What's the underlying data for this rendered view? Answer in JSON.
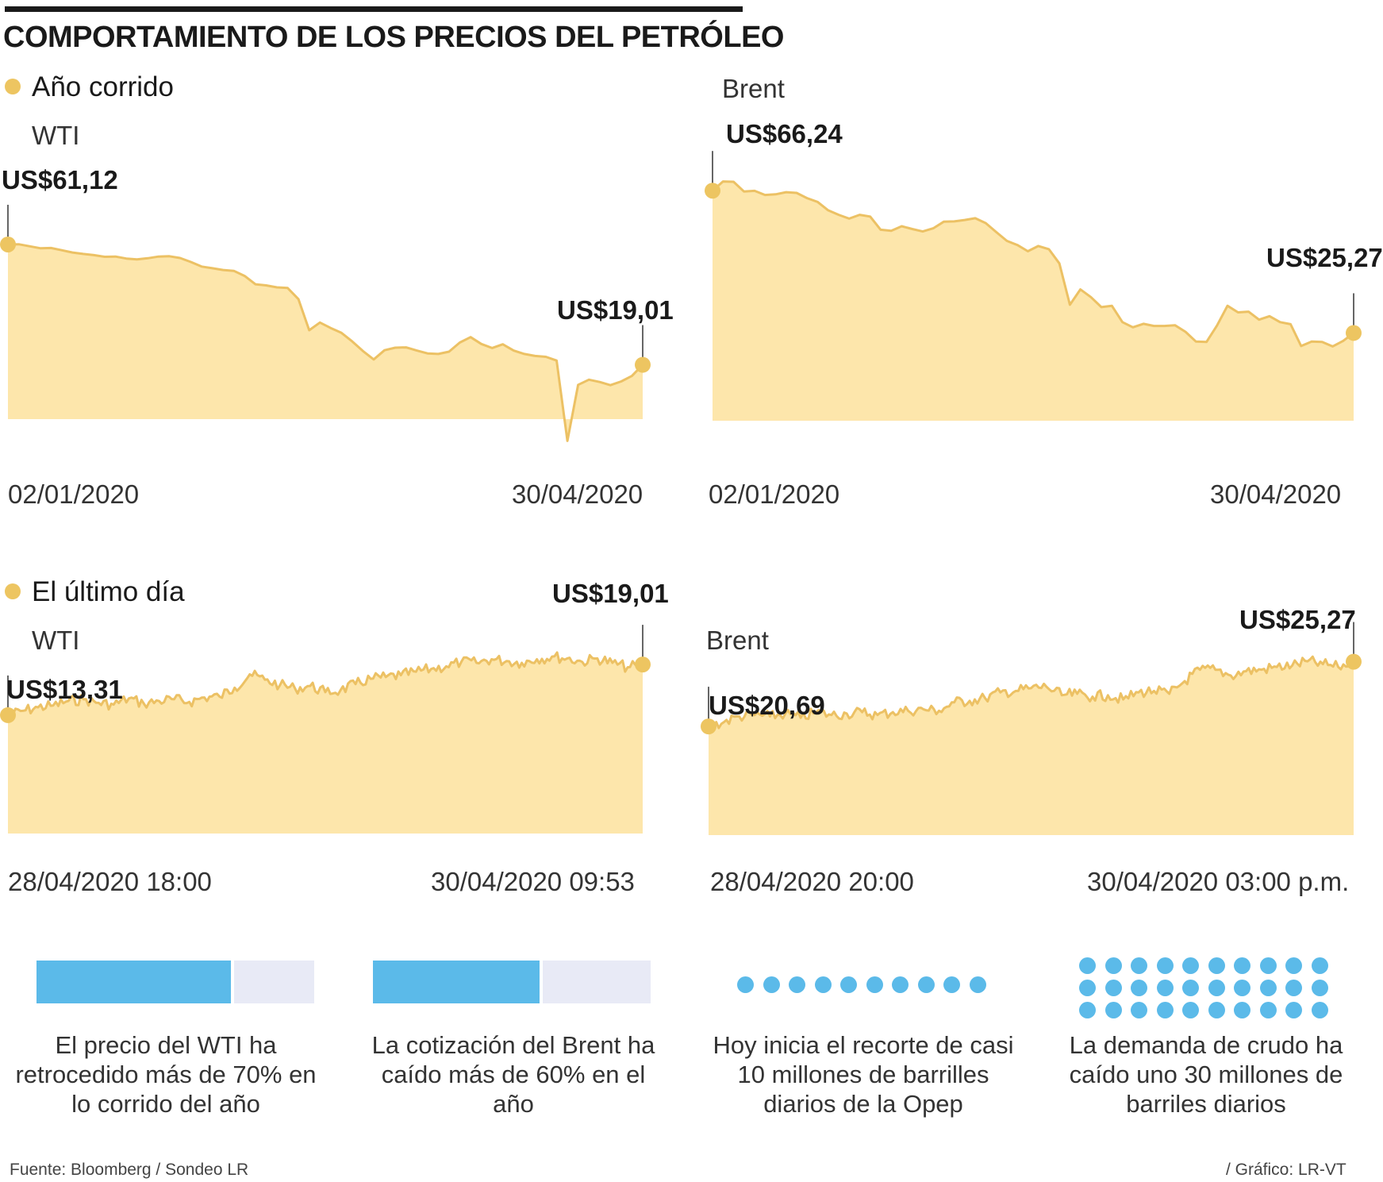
{
  "title": "COMPORTAMIENTO DE LOS PRECIOS DEL PETRÓLEO",
  "colors": {
    "area": "#fde6ab",
    "line": "#ecc164",
    "dot": "#edc561",
    "accent": "#5bbae9",
    "bar_bg": "#e8eaf6",
    "text": "#1a1a1a"
  },
  "sections": {
    "ytd": "Año corrido",
    "day": "El último día"
  },
  "chart_data": [
    {
      "type": "area",
      "title": "WTI",
      "period": "Año corrido",
      "x_start": "02/01/2020",
      "x_end": "30/04/2020",
      "start_label": "US$61,12",
      "end_label": "US$19,01",
      "start": 61.12,
      "end": 19.01,
      "ylim": [
        0,
        80
      ],
      "values": [
        61.12,
        61.2,
        60.5,
        59.8,
        59.9,
        59.1,
        58.3,
        57.8,
        57.4,
        56.8,
        56.9,
        56.2,
        55.9,
        56.3,
        56.9,
        57.0,
        56.4,
        55.0,
        53.4,
        52.8,
        52.2,
        51.9,
        50.1,
        47.2,
        46.8,
        46.1,
        45.9,
        42.0,
        31.1,
        33.8,
        31.9,
        30.2,
        27.2,
        23.8,
        20.9,
        24.1,
        25.0,
        25.1,
        24.0,
        23.0,
        22.8,
        23.6,
        26.8,
        28.7,
        26.3,
        24.9,
        26.2,
        24.0,
        22.8,
        22.1,
        21.8,
        20.5,
        -7.6,
        12.0,
        13.8,
        13.0,
        11.9,
        13.2,
        15.1,
        19.01
      ]
    },
    {
      "type": "area",
      "title": "Brent",
      "period": "Año corrido",
      "x_start": "02/01/2020",
      "x_end": "30/04/2020",
      "start_label": "US$66,24",
      "end_label": "US$25,27",
      "start": 66.24,
      "end": 25.27,
      "ylim": [
        0,
        80
      ],
      "values": [
        66.24,
        68.9,
        68.8,
        66.0,
        66.2,
        65.0,
        65.2,
        65.8,
        65.6,
        64.1,
        63.0,
        60.6,
        59.3,
        58.2,
        59.3,
        58.8,
        55.0,
        54.7,
        56.0,
        55.2,
        54.5,
        55.4,
        57.3,
        57.4,
        57.8,
        58.3,
        56.9,
        54.3,
        51.8,
        50.6,
        48.8,
        50.3,
        49.4,
        45.3,
        33.4,
        37.8,
        35.6,
        32.7,
        33.1,
        28.4,
        26.9,
        27.9,
        27.3,
        27.3,
        27.5,
        25.6,
        22.8,
        22.7,
        27.4,
        33.1,
        31.2,
        31.4,
        29.1,
        30.1,
        28.4,
        27.8,
        21.5,
        22.8,
        22.7,
        21.4,
        23.0,
        25.27
      ]
    },
    {
      "type": "area",
      "title": "WTI",
      "period": "El último día",
      "x_start": "28/04/2020 18:00",
      "x_end": "30/04/2020 09:53",
      "start_label": "US$13,31",
      "end_label": "US$19,01",
      "start": 13.31,
      "end": 19.01,
      "ylim": [
        0,
        25
      ],
      "values": [
        13.31,
        13.8,
        14.2,
        14.4,
        14.9,
        15.1,
        14.7,
        14.5,
        15.2,
        14.6,
        14.9,
        15.1,
        14.8,
        15.3,
        15.4,
        16.4,
        17.9,
        17.3,
        16.7,
        16.3,
        16.6,
        15.9,
        16.1,
        16.8,
        17.4,
        17.6,
        17.8,
        18.2,
        18.5,
        18.8,
        19.3,
        19.2,
        19.6,
        19.4,
        19.2,
        19.6,
        19.9,
        19.7,
        19.3,
        19.7,
        19.2,
        18.7,
        19.01
      ]
    },
    {
      "type": "area",
      "title": "Brent",
      "period": "El último día",
      "x_start": "28/04/2020 20:00",
      "x_end": "30/04/2020 03:00 p.m.",
      "start_label": "US$20,69",
      "end_label": "US$25,27",
      "start": 20.69,
      "end": 25.27,
      "ylim": [
        13,
        28
      ],
      "values": [
        20.69,
        21.0,
        21.4,
        21.5,
        21.4,
        21.6,
        21.3,
        21.7,
        21.5,
        21.6,
        21.7,
        21.5,
        21.7,
        21.8,
        21.9,
        21.8,
        22.4,
        22.5,
        22.7,
        23.1,
        23.2,
        23.4,
        23.5,
        22.9,
        23.0,
        22.8,
        22.9,
        22.6,
        23.1,
        23.2,
        23.0,
        23.9,
        24.7,
        24.7,
        24.3,
        24.6,
        24.7,
        24.9,
        25.0,
        25.3,
        25.1,
        24.9,
        25.27
      ]
    }
  ],
  "stats": [
    {
      "label": "El precio del WTI ha retrocedido más de 70% en lo corrido del año",
      "percent": 70
    },
    {
      "label": "La cotización del Brent ha caído más de 60% en el año",
      "percent": 60
    },
    {
      "label": "Hoy inicia el recorte de casi 10 millones de barrilles diarios de la Opep",
      "dots": 10,
      "rows": 1
    },
    {
      "label": "La demanda de crudo ha caído uno 30 millones de barriles diarios",
      "dots": 30,
      "rows": 3
    }
  ],
  "footer": {
    "source": "Fuente: Bloomberg / Sondeo LR",
    "credit": "/ Gráfico: LR-VT"
  }
}
